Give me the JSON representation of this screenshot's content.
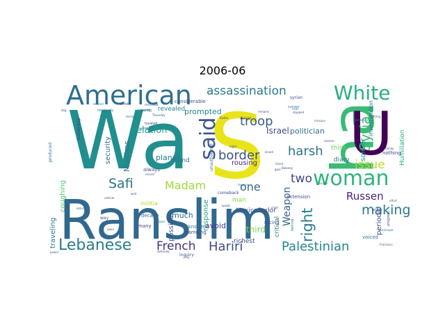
{
  "title": "2006-06",
  "chart_data": {
    "type": "wordcloud",
    "title": "2006-06",
    "palette": "viridis",
    "words": [
      {
        "text": "Ranslim",
        "weight": 100,
        "color": "#31688e",
        "orientation": "h"
      },
      {
        "text": "Wa",
        "weight": 95,
        "color": "#218f8d",
        "orientation": "h"
      },
      {
        "text": "S",
        "weight": 90,
        "color": "#e8e419",
        "orientation": "h"
      },
      {
        "text": "ha",
        "weight": 62,
        "color": "#3bbb75",
        "orientation": "v"
      },
      {
        "text": "U",
        "weight": 60,
        "color": "#440154",
        "orientation": "h"
      },
      {
        "text": "American",
        "weight": 40,
        "color": "#2d708e",
        "orientation": "h"
      },
      {
        "text": "woman",
        "weight": 30,
        "color": "#2fb47c",
        "orientation": "h"
      },
      {
        "text": "White",
        "weight": 27,
        "color": "#29af7f",
        "orientation": "h"
      },
      {
        "text": "said",
        "weight": 26,
        "color": "#3b528b",
        "orientation": "v"
      },
      {
        "text": "Lebanese",
        "weight": 24,
        "color": "#287c8e",
        "orientation": "h"
      },
      {
        "text": "assassination",
        "weight": 19,
        "color": "#2a788e",
        "orientation": "h"
      },
      {
        "text": "Palestinian",
        "weight": 18,
        "color": "#25858e",
        "orientation": "h"
      },
      {
        "text": "right",
        "weight": 18,
        "color": "#287d8e",
        "orientation": "v"
      },
      {
        "text": "Hariri",
        "weight": 17,
        "color": "#3e4a89",
        "orientation": "h"
      },
      {
        "text": "border",
        "weight": 17,
        "color": "#3b528b",
        "orientation": "h"
      },
      {
        "text": "troop",
        "weight": 17,
        "color": "#38598c",
        "orientation": "h"
      },
      {
        "text": "French",
        "weight": 17,
        "color": "#46327e",
        "orientation": "h"
      },
      {
        "text": "Syria",
        "weight": 17,
        "color": "#3dbc74",
        "orientation": "v"
      },
      {
        "text": "Safi",
        "weight": 16,
        "color": "#2c728e",
        "orientation": "h"
      },
      {
        "text": "harsh",
        "weight": 16,
        "color": "#2c738e",
        "orientation": "h"
      },
      {
        "text": "issue",
        "weight": 15,
        "color": "#b8de29",
        "orientation": "h"
      },
      {
        "text": "making",
        "weight": 15,
        "color": "#2a788e",
        "orientation": "h"
      },
      {
        "text": "Russen",
        "weight": 14,
        "color": "#482374",
        "orientation": "h"
      },
      {
        "text": "Madam",
        "weight": 14,
        "color": "#a0da39",
        "orientation": "h"
      },
      {
        "text": "two",
        "weight": 13,
        "color": "#414487",
        "orientation": "h"
      },
      {
        "text": "one",
        "weight": 13,
        "color": "#33638d",
        "orientation": "h"
      },
      {
        "text": "Weapon",
        "weight": 13,
        "color": "#33638d",
        "orientation": "v"
      },
      {
        "text": "relation",
        "weight": 11,
        "color": "#1f9a8a",
        "orientation": "h"
      },
      {
        "text": "Israel",
        "weight": 10,
        "color": "#3e4989",
        "orientation": "h"
      },
      {
        "text": "soldier",
        "weight": 10,
        "color": "#21918c",
        "orientation": "v"
      },
      {
        "text": "Muslims",
        "weight": 10,
        "color": "#2a788e",
        "orientation": "v"
      },
      {
        "text": "prompted",
        "weight": 9,
        "color": "#26828e",
        "orientation": "h"
      },
      {
        "text": "politician",
        "weight": 9,
        "color": "#2d708e",
        "orientation": "h"
      },
      {
        "text": "Humiliation",
        "weight": 9,
        "color": "#22a785",
        "orientation": "v"
      },
      {
        "text": "security",
        "weight": 9,
        "color": "#2e6e8e",
        "orientation": "v"
      },
      {
        "text": "traveling",
        "weight": 9,
        "color": "#2a788e",
        "orientation": "v"
      },
      {
        "text": "coughing",
        "weight": 9,
        "color": "#52c569",
        "orientation": "v"
      },
      {
        "text": "possible",
        "weight": 9,
        "color": "#3b528b",
        "orientation": "v"
      },
      {
        "text": "response",
        "weight": 9,
        "color": "#20a386",
        "orientation": "v"
      },
      {
        "text": "periodic",
        "weight": 9,
        "color": "#3e4a89",
        "orientation": "v"
      },
      {
        "text": "much",
        "weight": 9,
        "color": "#31688e",
        "orientation": "h"
      },
      {
        "text": "avoid",
        "weight": 9,
        "color": "#443983",
        "orientation": "h"
      },
      {
        "text": "rousing",
        "weight": 9,
        "color": "#482878",
        "orientation": "h"
      },
      {
        "text": "third",
        "weight": 9,
        "color": "#7ad151",
        "orientation": "h"
      },
      {
        "text": "critical",
        "weight": 8,
        "color": "#2c728e",
        "orientation": "v"
      },
      {
        "text": "planet",
        "weight": 8,
        "color": "#287c8e",
        "orientation": "h"
      },
      {
        "text": "found",
        "weight": 7,
        "color": "#2a788e",
        "orientation": "h"
      },
      {
        "text": "revealed",
        "weight": 7,
        "color": "#26828e",
        "orientation": "h"
      },
      {
        "text": "richest",
        "weight": 7,
        "color": "#3e4a89",
        "orientation": "h"
      },
      {
        "text": "man",
        "weight": 7,
        "color": "#8fd744",
        "orientation": "h"
      },
      {
        "text": "Mexico",
        "weight": 7,
        "color": "#39568c",
        "orientation": "h"
      },
      {
        "text": "Parlor",
        "weight": 7,
        "color": "#3e4a89",
        "orientation": "h"
      },
      {
        "text": "diary",
        "weight": 7,
        "color": "#2c728e",
        "orientation": "h"
      },
      {
        "text": "think",
        "weight": 6,
        "color": "#6ccd5a",
        "orientation": "h"
      },
      {
        "text": "investigation",
        "weight": 6,
        "color": "#2c728e",
        "orientation": "v"
      },
      {
        "text": "considerable",
        "weight": 6,
        "color": "#404688",
        "orientation": "h"
      },
      {
        "text": "extension",
        "weight": 6,
        "color": "#3b528b",
        "orientation": "h"
      },
      {
        "text": "militia",
        "weight": 6,
        "color": "#b5de2b",
        "orientation": "h"
      },
      {
        "text": "decade",
        "weight": 6,
        "color": "#31688e",
        "orientation": "h"
      },
      {
        "text": "always",
        "weight": 6,
        "color": "#3b528b",
        "orientation": "h"
      },
      {
        "text": "many",
        "weight": 6,
        "color": "#433e85",
        "orientation": "h"
      },
      {
        "text": "unknown",
        "weight": 6,
        "color": "#2c728e",
        "orientation": "h"
      },
      {
        "text": "damning",
        "weight": 6,
        "color": "#3e4989",
        "orientation": "h"
      },
      {
        "text": "racing",
        "weight": 6,
        "color": "#3b528b",
        "orientation": "h"
      },
      {
        "text": "voiced",
        "weight": 6,
        "color": "#2c728e",
        "orientation": "h"
      },
      {
        "text": "nothing",
        "weight": 6,
        "color": "#414487",
        "orientation": "h"
      },
      {
        "text": "comeback",
        "weight": 5,
        "color": "#3e4989",
        "orientation": "h"
      },
      {
        "text": "syrian",
        "weight": 5,
        "color": "#3b528b",
        "orientation": "h"
      },
      {
        "text": "leadership",
        "weight": 5,
        "color": "#414487",
        "orientation": "v"
      },
      {
        "text": "unauthorized",
        "weight": 5,
        "color": "#2d708e",
        "orientation": "v"
      },
      {
        "text": "way",
        "weight": 5,
        "color": "#3b528b",
        "orientation": "h"
      },
      {
        "text": "inquiry",
        "weight": 5,
        "color": "#3b528b",
        "orientation": "h"
      },
      {
        "text": "produced",
        "weight": 5,
        "color": "#2a788e",
        "orientation": "v"
      },
      {
        "text": "stroke",
        "weight": 4,
        "color": "#3e4989",
        "orientation": "h"
      },
      {
        "text": "relatively",
        "weight": 4,
        "color": "#2a788e",
        "orientation": "h"
      },
      {
        "text": "pressing",
        "weight": 4,
        "color": "#22a785",
        "orientation": "h"
      },
      {
        "text": "world",
        "weight": 4,
        "color": "#3e4989",
        "orientation": "h"
      },
      {
        "text": "group",
        "weight": 4,
        "color": "#3b528b",
        "orientation": "h"
      },
      {
        "text": "progress",
        "weight": 4,
        "color": "#3e4989",
        "orientation": "v"
      },
      {
        "text": "behind",
        "weight": 4,
        "color": "#2a788e",
        "orientation": "v"
      },
      {
        "text": "survey",
        "weight": 4,
        "color": "#2a788e",
        "orientation": "h"
      },
      {
        "text": "treated",
        "weight": 4,
        "color": "#3b528b",
        "orientation": "h"
      },
      {
        "text": "Buzka",
        "weight": 3,
        "color": "#3e4989",
        "orientation": "h"
      },
      {
        "text": "defender",
        "weight": 3,
        "color": "#3b528b",
        "orientation": "h"
      },
      {
        "text": "lawyer",
        "weight": 3,
        "color": "#2a788e",
        "orientation": "h"
      },
      {
        "text": "desired",
        "weight": 3,
        "color": "#2a788e",
        "orientation": "h"
      },
      {
        "text": "remains",
        "weight": 3,
        "color": "#3b528b",
        "orientation": "h"
      },
      {
        "text": "support",
        "weight": 3,
        "color": "#3e4989",
        "orientation": "h"
      },
      {
        "text": "wait",
        "weight": 3,
        "color": "#3b528b",
        "orientation": "h"
      },
      {
        "text": "Francisco",
        "weight": 3,
        "color": "#3b528b",
        "orientation": "h"
      },
      {
        "text": "establish",
        "weight": 3,
        "color": "#2a788e",
        "orientation": "h"
      },
      {
        "text": "vehicle",
        "weight": 3,
        "color": "#3b528b",
        "orientation": "h"
      },
      {
        "text": "effort",
        "weight": 3,
        "color": "#2a788e",
        "orientation": "h"
      },
      {
        "text": "record",
        "weight": 3,
        "color": "#3b528b",
        "orientation": "h"
      },
      {
        "text": "issued",
        "weight": 3,
        "color": "#2a788e",
        "orientation": "h"
      },
      {
        "text": "several",
        "weight": 3,
        "color": "#3b528b",
        "orientation": "h"
      },
      {
        "text": "goal",
        "weight": 3,
        "color": "#3e4989",
        "orientation": "h"
      },
      {
        "text": "failed",
        "weight": 3,
        "color": "#2a788e",
        "orientation": "h"
      },
      {
        "text": "rescinded",
        "weight": 3,
        "color": "#3b528b",
        "orientation": "h"
      },
      {
        "text": "new",
        "weight": 3,
        "color": "#2a788e",
        "orientation": "h"
      },
      {
        "text": "stopped",
        "weight": 3,
        "color": "#3b528b",
        "orientation": "h"
      },
      {
        "text": "Thursday",
        "weight": 3,
        "color": "#3b528b",
        "orientation": "h"
      },
      {
        "text": "demand",
        "weight": 3,
        "color": "#2a788e",
        "orientation": "h"
      },
      {
        "text": "Baloney",
        "weight": 3,
        "color": "#3e4989",
        "orientation": "h"
      },
      {
        "text": "speak",
        "weight": 3,
        "color": "#3b528b",
        "orientation": "h"
      },
      {
        "text": "prominent",
        "weight": 3,
        "color": "#2a788e",
        "orientation": "h"
      },
      {
        "text": "eight",
        "weight": 3,
        "color": "#3b528b",
        "orientation": "h"
      },
      {
        "text": "fighting",
        "weight": 3,
        "color": "#2a788e",
        "orientation": "h"
      },
      {
        "text": "dog",
        "weight": 3,
        "color": "#3e4989",
        "orientation": "h"
      },
      {
        "text": "power",
        "weight": 3,
        "color": "#3b528b",
        "orientation": "h"
      },
      {
        "text": "belief",
        "weight": 3,
        "color": "#2a788e",
        "orientation": "h"
      },
      {
        "text": "play",
        "weight": 3,
        "color": "#3b528b",
        "orientation": "h"
      },
      {
        "text": "asked",
        "weight": 3,
        "color": "#2a788e",
        "orientation": "h"
      },
      {
        "text": "chief",
        "weight": 3,
        "color": "#3b528b",
        "orientation": "h"
      },
      {
        "text": "landscape",
        "weight": 3,
        "color": "#2a788e",
        "orientation": "h"
      },
      {
        "text": "family",
        "weight": 3,
        "color": "#3e4989",
        "orientation": "h"
      },
      {
        "text": "Israeli",
        "weight": 3,
        "color": "#3b528b",
        "orientation": "h"
      },
      {
        "text": "mosque",
        "weight": 3,
        "color": "#2a788e",
        "orientation": "h"
      },
      {
        "text": "open",
        "weight": 3,
        "color": "#3b528b",
        "orientation": "h"
      }
    ]
  }
}
